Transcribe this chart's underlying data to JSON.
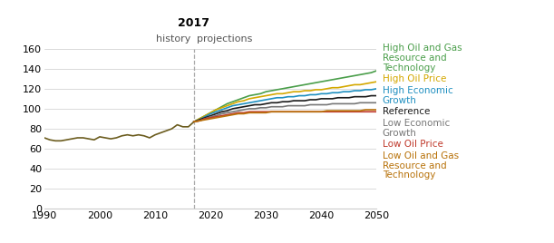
{
  "title": "2017",
  "history_label": "history",
  "projections_label": "projections",
  "split_year": 2017,
  "xlim": [
    1990,
    2050
  ],
  "ylim": [
    0,
    160
  ],
  "yticks": [
    0,
    20,
    40,
    60,
    80,
    100,
    120,
    140,
    160
  ],
  "xticks": [
    1990,
    2000,
    2010,
    2020,
    2030,
    2040,
    2050
  ],
  "history_years": [
    1990,
    1991,
    1992,
    1993,
    1994,
    1995,
    1996,
    1997,
    1998,
    1999,
    2000,
    2001,
    2002,
    2003,
    2004,
    2005,
    2006,
    2007,
    2008,
    2009,
    2010,
    2011,
    2012,
    2013,
    2014,
    2015,
    2016,
    2017
  ],
  "history_values": [
    71,
    69,
    68,
    68,
    69,
    70,
    71,
    71,
    70,
    69,
    72,
    71,
    70,
    71,
    73,
    74,
    73,
    74,
    73,
    71,
    74,
    76,
    78,
    80,
    84,
    82,
    82,
    87
  ],
  "projection_years": [
    2017,
    2018,
    2019,
    2020,
    2021,
    2022,
    2023,
    2024,
    2025,
    2026,
    2027,
    2028,
    2029,
    2030,
    2031,
    2032,
    2033,
    2034,
    2035,
    2036,
    2037,
    2038,
    2039,
    2040,
    2041,
    2042,
    2043,
    2044,
    2045,
    2046,
    2047,
    2048,
    2049,
    2050
  ],
  "series": [
    {
      "name": "High Oil and Gas\nResource and\nTechnology",
      "color": "#4a9e4a",
      "label_lines": [
        "High Oil and Gas",
        "Resource and",
        "Technology"
      ],
      "values": [
        87,
        90,
        93,
        96,
        99,
        102,
        105,
        107,
        109,
        111,
        113,
        114,
        115,
        117,
        118,
        119,
        120,
        121,
        122,
        123,
        124,
        125,
        126,
        127,
        128,
        129,
        130,
        131,
        132,
        133,
        134,
        135,
        136,
        138
      ]
    },
    {
      "name": "High Oil Price",
      "color": "#d4a800",
      "label_lines": [
        "High Oil Price"
      ],
      "values": [
        87,
        90,
        93,
        96,
        99,
        101,
        103,
        105,
        107,
        108,
        110,
        111,
        112,
        113,
        114,
        115,
        115,
        116,
        117,
        117,
        118,
        118,
        119,
        119,
        120,
        121,
        121,
        122,
        123,
        124,
        124,
        125,
        126,
        127
      ]
    },
    {
      "name": "High Economic Growth",
      "color": "#1e8fc0",
      "label_lines": [
        "High Economic",
        "Growth"
      ],
      "values": [
        87,
        89,
        92,
        95,
        97,
        99,
        101,
        103,
        104,
        105,
        106,
        107,
        108,
        109,
        110,
        111,
        111,
        112,
        112,
        113,
        113,
        114,
        114,
        115,
        115,
        116,
        116,
        117,
        117,
        118,
        118,
        119,
        119,
        120
      ]
    },
    {
      "name": "Reference",
      "color": "#1a1a1a",
      "label_lines": [
        "Reference"
      ],
      "values": [
        87,
        89,
        91,
        93,
        95,
        97,
        98,
        100,
        101,
        102,
        103,
        104,
        104,
        105,
        106,
        106,
        107,
        107,
        108,
        108,
        108,
        109,
        109,
        110,
        110,
        110,
        111,
        111,
        111,
        112,
        112,
        112,
        113,
        113
      ]
    },
    {
      "name": "Low Economic Growth",
      "color": "#777777",
      "label_lines": [
        "Low Economic",
        "Growth"
      ],
      "values": [
        87,
        88,
        90,
        92,
        93,
        95,
        96,
        97,
        98,
        99,
        100,
        100,
        101,
        101,
        102,
        102,
        102,
        103,
        103,
        103,
        103,
        104,
        104,
        104,
        104,
        105,
        105,
        105,
        105,
        105,
        106,
        106,
        106,
        106
      ]
    },
    {
      "name": "Low Oil Price",
      "color": "#c0392b",
      "label_lines": [
        "Low Oil Price"
      ],
      "values": [
        87,
        88,
        90,
        91,
        92,
        93,
        94,
        95,
        96,
        96,
        97,
        97,
        97,
        97,
        97,
        97,
        97,
        97,
        97,
        97,
        97,
        97,
        97,
        97,
        97,
        97,
        97,
        97,
        97,
        97,
        97,
        97,
        97,
        97
      ]
    },
    {
      "name": "Low Oil and Gas Resource and Technology",
      "color": "#b8720a",
      "label_lines": [
        "Low Oil and Gas",
        "Resource and",
        "Technology"
      ],
      "values": [
        87,
        88,
        89,
        90,
        91,
        92,
        93,
        94,
        95,
        95,
        96,
        96,
        96,
        96,
        97,
        97,
        97,
        97,
        97,
        97,
        97,
        97,
        97,
        97,
        98,
        98,
        98,
        98,
        98,
        98,
        98,
        99,
        99,
        99
      ]
    }
  ],
  "history_color": "#6b5c1e",
  "background_color": "#ffffff",
  "grid_color": "#cccccc",
  "tick_fontsize": 8,
  "title_fontsize": 9,
  "label_fontsize": 8,
  "legend_fontsize": 7.5
}
